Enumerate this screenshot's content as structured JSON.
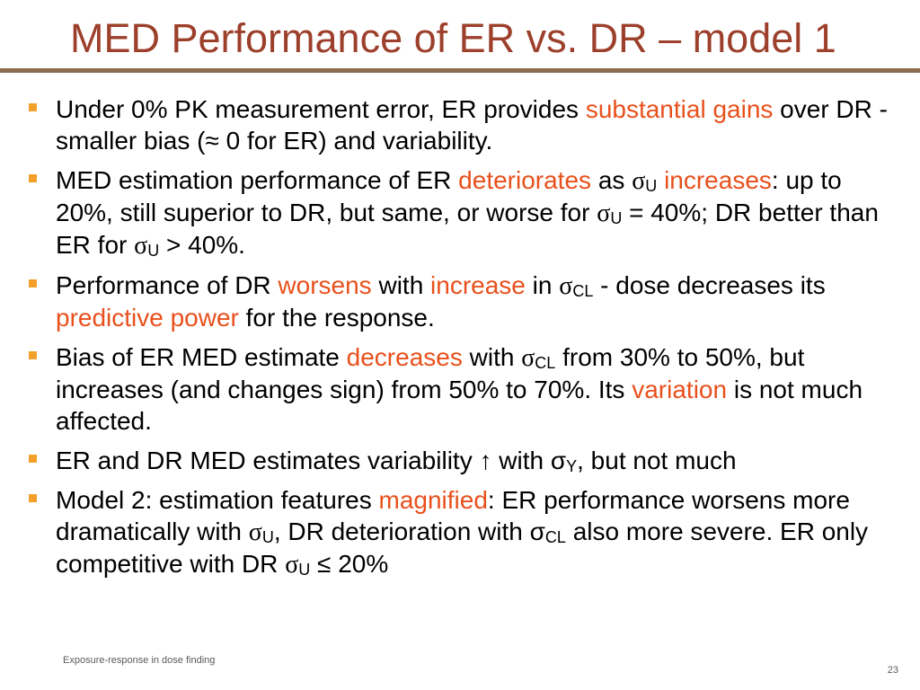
{
  "slide": {
    "title": "MED Performance of ER vs. DR – model 1",
    "footer": "Exposure-response in dose finding",
    "page_number": "23",
    "colors": {
      "title": "#9c3f2b",
      "highlight": "#e8501c",
      "bullet": "#f2a02a",
      "rule": "#8c6b4f"
    }
  },
  "bullets": [
    {
      "runs": [
        {
          "t": "Under 0%  PK measurement error, ER provides "
        },
        {
          "t": "substantial gains",
          "hl": true
        },
        {
          "t": " over DR -  smaller bias (≈ 0 for ER) and variability."
        }
      ]
    },
    {
      "runs": [
        {
          "t": "MED estimation performance of ER "
        },
        {
          "t": "deteriorates",
          "hl": true
        },
        {
          "t": " as "
        },
        {
          "t": "σ",
          "sym": true
        },
        {
          "t": "U",
          "sub": true
        },
        {
          "t": " "
        },
        {
          "t": "increases",
          "hl": true
        },
        {
          "t": ": up to 20%, still superior to DR, but same, or worse for "
        },
        {
          "t": "σ",
          "sym": true
        },
        {
          "t": "U",
          "sub": true
        },
        {
          "t": " =  40%; DR better than ER for "
        },
        {
          "t": "σ",
          "sym": true
        },
        {
          "t": "U",
          "sub": true
        },
        {
          "t": " >  40%."
        }
      ]
    },
    {
      "runs": [
        {
          "t": "Performance of DR "
        },
        {
          "t": "worsens",
          "hl": true
        },
        {
          "t": " with "
        },
        {
          "t": "increase",
          "hl": true
        },
        {
          "t": " in "
        },
        {
          "t": "σ",
          "sym": true
        },
        {
          "t": "CL",
          "sub": true
        },
        {
          "t": " - dose decreases its "
        },
        {
          "t": "predictive power",
          "hl": true
        },
        {
          "t": " for the response."
        }
      ]
    },
    {
      "runs": [
        {
          "t": "Bias of ER MED estimate "
        },
        {
          "t": "decreases",
          "hl": true
        },
        {
          "t": " with "
        },
        {
          "t": "σ",
          "sym": true
        },
        {
          "t": "CL",
          "sub": true
        },
        {
          "t": " from 30% to 50%, but increases (and changes sign) from 50% to 70%. Its "
        },
        {
          "t": "variation",
          "hl": true
        },
        {
          "t": " is not much affected."
        }
      ]
    },
    {
      "runs": [
        {
          "t": "ER and DR MED estimates variability ↑ with σ"
        },
        {
          "t": "Y",
          "sub": true
        },
        {
          "t": ", but not much"
        }
      ]
    },
    {
      "runs": [
        {
          "t": "Model 2: estimation features "
        },
        {
          "t": "magnified",
          "hl": true
        },
        {
          "t": ": ER performance worsens more dramatically with "
        },
        {
          "t": "σ",
          "sym": true
        },
        {
          "t": "U",
          "sub": true
        },
        {
          "t": ", DR deterioration with σ"
        },
        {
          "t": "CL",
          "sub": true
        },
        {
          "t": " also more severe. ER only competitive with DR "
        },
        {
          "t": "σ",
          "sym": true
        },
        {
          "t": "U",
          "sub": true
        },
        {
          "t": " ≤ 20%"
        }
      ]
    }
  ]
}
